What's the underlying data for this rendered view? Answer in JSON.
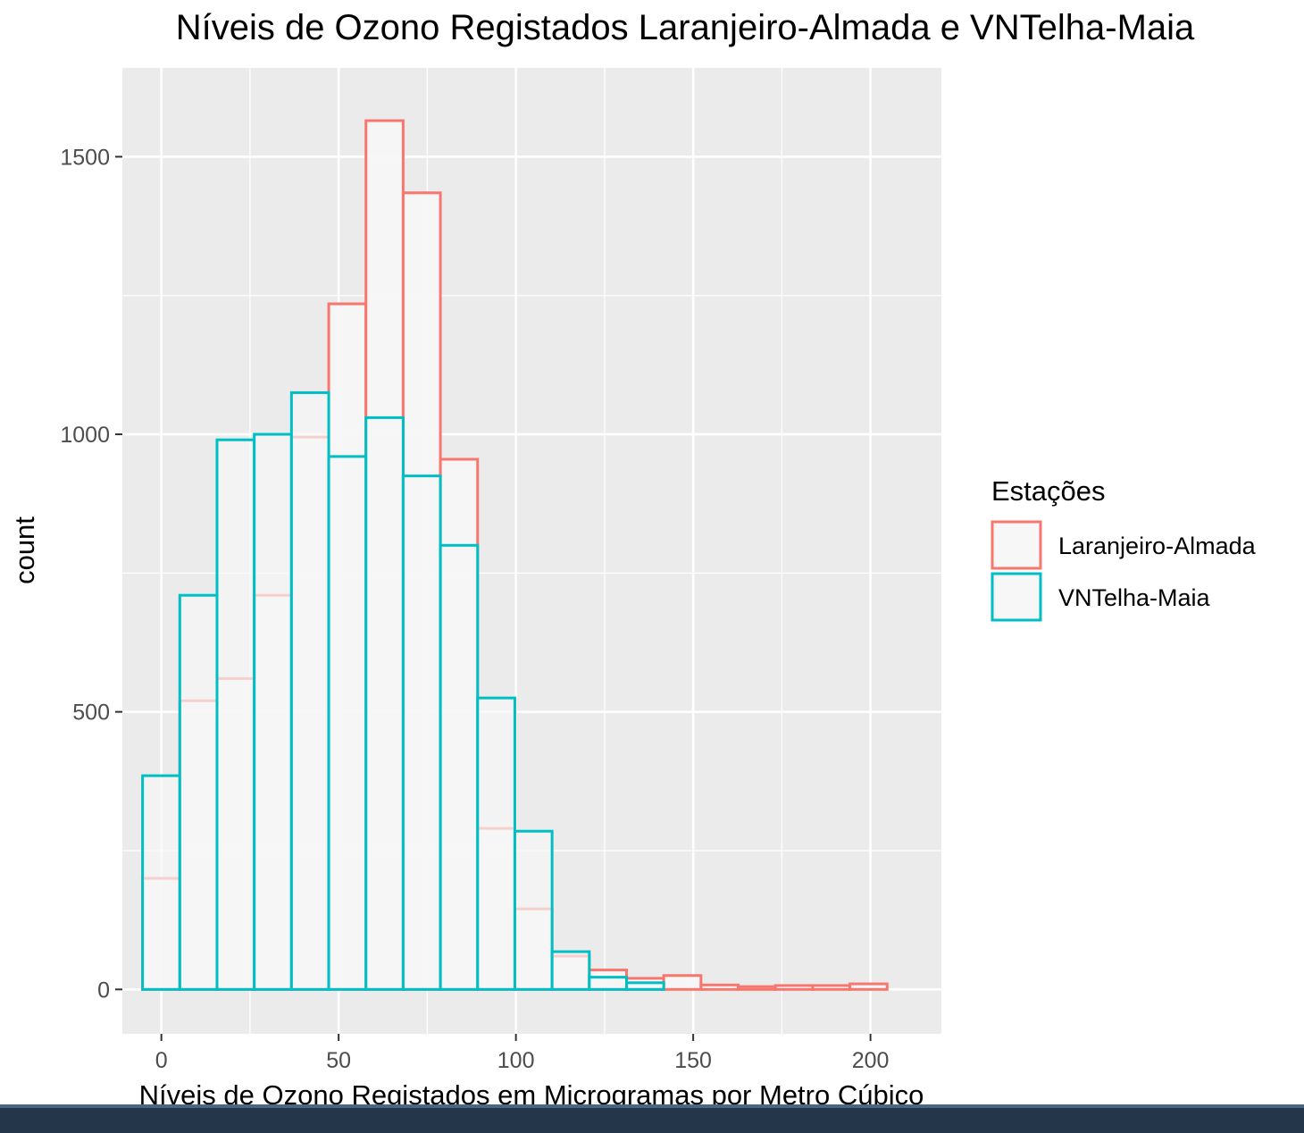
{
  "chart_data": {
    "type": "histogram",
    "title": "Níveis de Ozono Registados Laranjeiro-Almada e VNTelha-Maia",
    "xlabel": "Níveis de Ozono Registados em Microgramas por Metro Cúbico",
    "ylabel": "count",
    "xlim": [
      -11,
      220
    ],
    "ylim": [
      -80,
      1660
    ],
    "x_ticks": [
      0,
      50,
      100,
      150,
      200
    ],
    "x_tick_labels": [
      "0",
      "50",
      "100",
      "150",
      "200"
    ],
    "y_ticks": [
      0,
      500,
      1000,
      1500
    ],
    "y_tick_labels": [
      "0",
      "500",
      "1000",
      "1500"
    ],
    "bin_edges": [
      -5.3,
      5.2,
      15.7,
      26.2,
      36.7,
      47.2,
      57.7,
      68.2,
      78.7,
      89.2,
      99.7,
      110.2,
      120.7,
      131.2,
      141.7,
      152.2,
      162.7,
      173.2,
      183.7,
      194.2,
      204.7
    ],
    "legend": {
      "title": "Estações",
      "position": "right"
    },
    "grid": true,
    "series": [
      {
        "name": "Laranjeiro-Almada",
        "color": "#F8766D",
        "values": [
          200,
          520,
          560,
          710,
          995,
          1235,
          1565,
          1435,
          955,
          290,
          145,
          60,
          35,
          20,
          25,
          8,
          5,
          7,
          7,
          10
        ]
      },
      {
        "name": "VNTelha-Maia",
        "color": "#00BFC4",
        "values": [
          385,
          710,
          990,
          1000,
          1075,
          960,
          1030,
          925,
          800,
          525,
          285,
          68,
          22,
          12,
          0,
          0,
          0,
          0,
          0,
          0
        ]
      }
    ],
    "colors": {
      "panel": "#EBEBEB",
      "grid": "#FFFFFF",
      "bar_fill": "#F7F7F7",
      "text": "#000000",
      "tick_text": "#4D4D4D",
      "tick_mark": "#333333"
    }
  }
}
